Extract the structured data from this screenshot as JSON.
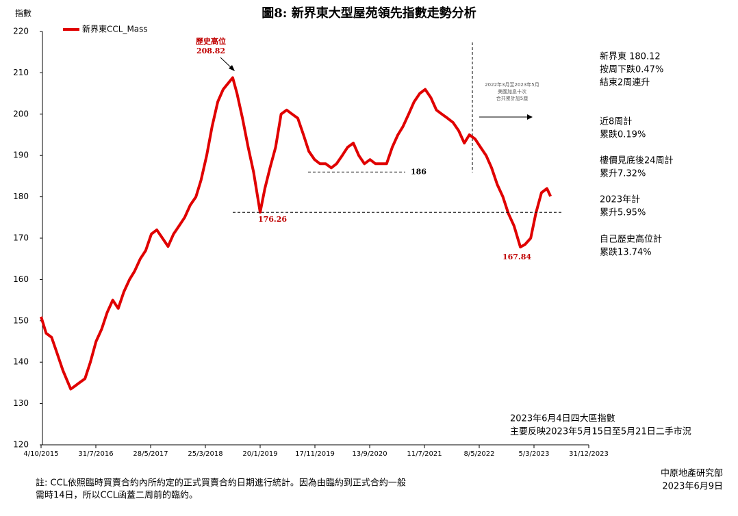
{
  "chart_data": {
    "type": "line",
    "title": "圖8: 新界東大型屋苑領先指數走勢分析",
    "y_label": "指數",
    "ylim": [
      120,
      220
    ],
    "yticks": [
      120,
      130,
      140,
      150,
      160,
      170,
      180,
      190,
      200,
      210,
      220
    ],
    "xlim": [
      "2015-10-04",
      "2023-12-31"
    ],
    "xticks": [
      {
        "value": "2015-10-04",
        "label": "4/10/2015"
      },
      {
        "value": "2016-07-31",
        "label": "31/7/2016"
      },
      {
        "value": "2017-05-28",
        "label": "28/5/2017"
      },
      {
        "value": "2018-03-25",
        "label": "25/3/2018"
      },
      {
        "value": "2019-01-20",
        "label": "20/1/2019"
      },
      {
        "value": "2019-11-17",
        "label": "17/11/2019"
      },
      {
        "value": "2020-09-13",
        "label": "13/9/2020"
      },
      {
        "value": "2021-07-11",
        "label": "11/7/2021"
      },
      {
        "value": "2022-05-08",
        "label": "8/5/2022"
      },
      {
        "value": "2023-03-05",
        "label": "5/3/2023"
      },
      {
        "value": "2023-12-31",
        "label": "31/12/2023"
      }
    ],
    "x": [
      "2015-10-04",
      "2015-11-01",
      "2015-12-01",
      "2016-01-01",
      "2016-02-01",
      "2016-03-15",
      "2016-04-01",
      "2016-05-01",
      "2016-06-01",
      "2016-07-01",
      "2016-08-01",
      "2016-09-01",
      "2016-10-01",
      "2016-11-01",
      "2016-12-01",
      "2017-01-01",
      "2017-02-01",
      "2017-03-01",
      "2017-04-01",
      "2017-05-01",
      "2017-06-01",
      "2017-07-01",
      "2017-08-01",
      "2017-09-01",
      "2017-10-01",
      "2017-11-01",
      "2017-12-01",
      "2018-01-01",
      "2018-02-01",
      "2018-03-01",
      "2018-04-01",
      "2018-05-01",
      "2018-06-01",
      "2018-07-01",
      "2018-08-22",
      "2018-09-15",
      "2018-10-15",
      "2018-11-15",
      "2018-12-15",
      "2019-01-20",
      "2019-02-15",
      "2019-03-15",
      "2019-04-15",
      "2019-05-15",
      "2019-06-15",
      "2019-07-15",
      "2019-08-15",
      "2019-09-15",
      "2019-10-15",
      "2019-11-15",
      "2019-12-15",
      "2020-01-15",
      "2020-02-15",
      "2020-03-15",
      "2020-04-15",
      "2020-05-15",
      "2020-06-15",
      "2020-07-15",
      "2020-08-15",
      "2020-09-15",
      "2020-10-15",
      "2020-11-15",
      "2020-12-15",
      "2021-01-15",
      "2021-02-15",
      "2021-03-15",
      "2021-04-15",
      "2021-05-15",
      "2021-06-15",
      "2021-07-15",
      "2021-08-15",
      "2021-09-15",
      "2021-10-15",
      "2021-11-15",
      "2021-12-15",
      "2022-01-15",
      "2022-02-15",
      "2022-03-15",
      "2022-04-15",
      "2022-05-15",
      "2022-06-15",
      "2022-07-15",
      "2022-08-15",
      "2022-09-15",
      "2022-10-15",
      "2022-11-15",
      "2022-12-20",
      "2023-01-15",
      "2023-02-15",
      "2023-03-15",
      "2023-04-15",
      "2023-05-15",
      "2023-06-04"
    ],
    "series": [
      {
        "name": "新界東CCL_Mass",
        "color": "#e00000",
        "values": [
          151,
          147,
          146,
          142,
          138,
          133.5,
          134,
          135,
          136,
          140,
          145,
          148,
          152,
          155,
          153,
          157,
          160,
          162,
          165,
          167,
          171,
          172,
          170,
          168,
          171,
          173,
          175,
          178,
          180,
          184,
          190,
          197,
          203,
          206,
          208.82,
          205,
          199,
          192,
          186,
          176.26,
          182,
          187,
          192,
          200,
          201,
          200,
          199,
          195,
          191,
          189,
          188,
          188,
          187,
          188,
          190,
          192,
          193,
          190,
          188,
          189,
          188,
          188,
          188,
          192,
          195,
          197,
          200,
          203,
          205,
          206,
          204,
          201,
          200,
          199,
          198,
          196,
          193,
          195,
          194,
          192,
          190,
          187,
          183,
          180,
          176,
          173,
          167.84,
          168.5,
          170,
          176,
          181,
          182,
          180.12
        ]
      }
    ],
    "annotations": [
      {
        "text": "歷史高位",
        "value": 208.82
      },
      {
        "value": 176.26
      },
      {
        "value": 186
      },
      {
        "value": 167.84
      }
    ],
    "rate_note": [
      "2022年3月至2023年5月",
      "美國加息十次",
      "合共累計加5厘"
    ],
    "side_notes": [
      [
        "新界東 180.12",
        "按周下跌0.47%",
        "結束2周連升"
      ],
      [
        "近8周計",
        "累跌0.19%"
      ],
      [
        "樓價見底後24周計",
        "累升7.32%"
      ],
      [
        "2023年計",
        "累升5.95%"
      ],
      [
        "自己歷史高位計",
        "累跌13.74%"
      ]
    ],
    "source_lines": [
      "2023年6月4日四大區指數",
      "主要反映2023年5月15日至5月21日二手市況"
    ],
    "footnote": [
      "註: CCL依照臨時買賣合約內所約定的正式買賣合約日期進行統計。因為由臨約到正式合約一般",
      "需時14日，所以CCL函蓋二周前的臨約。"
    ],
    "credit": [
      "中原地產研究部",
      "2023年6月9日"
    ]
  }
}
